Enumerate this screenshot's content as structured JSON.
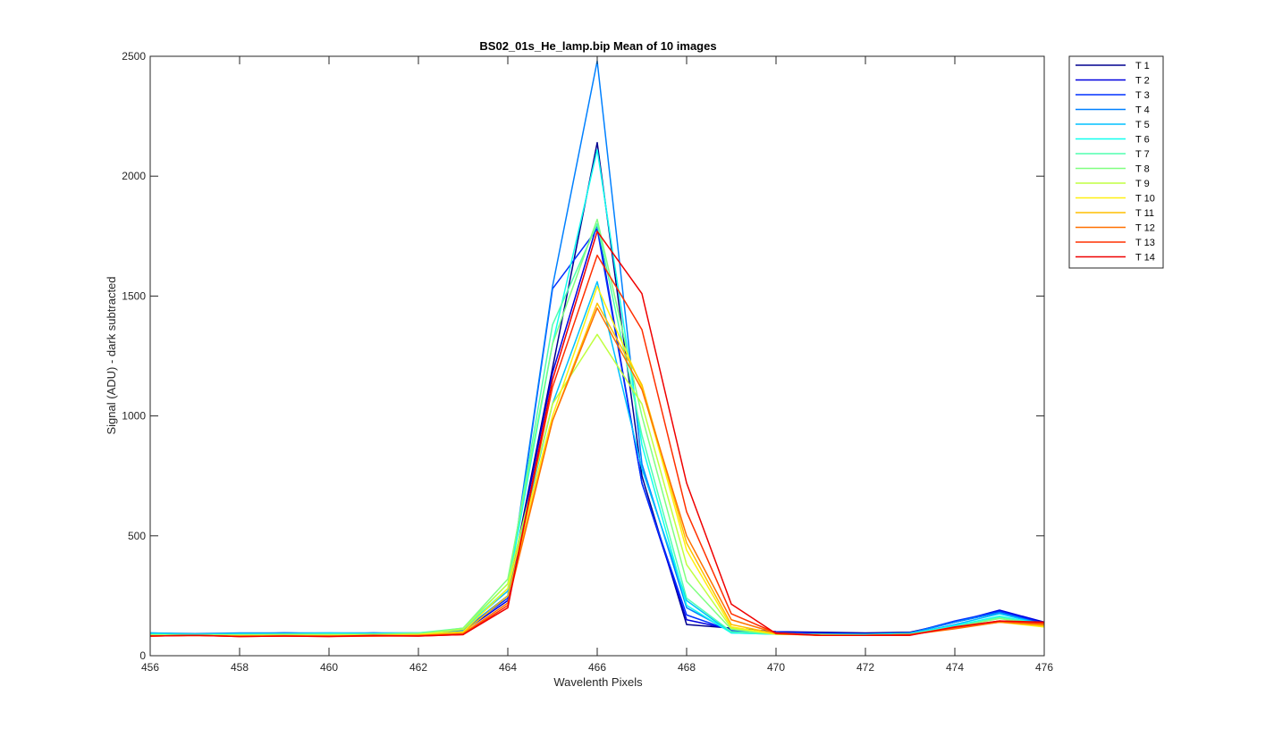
{
  "chart_data": {
    "type": "line",
    "title": "BS02_01s_He_lamp.bip  Mean of 10 images",
    "xlabel": "Wavelenth Pixels",
    "ylabel": "Signal (ADU) - dark subtracted",
    "xlim": [
      456,
      476
    ],
    "ylim": [
      0,
      2500
    ],
    "xticks": [
      456,
      458,
      460,
      462,
      464,
      466,
      468,
      470,
      472,
      474,
      476
    ],
    "yticks": [
      0,
      500,
      1000,
      1500,
      2000,
      2500
    ],
    "grid": false,
    "legend_position": "outside-top-right",
    "x": [
      456,
      457,
      458,
      459,
      460,
      461,
      462,
      463,
      464,
      465,
      466,
      467,
      468,
      469,
      470,
      471,
      472,
      473,
      474,
      475,
      476
    ],
    "series": [
      {
        "name": "T 1",
        "color": "#00008f",
        "values": [
          90,
          90,
          88,
          92,
          90,
          95,
          90,
          100,
          250,
          1200,
          2140,
          750,
          130,
          115,
          100,
          98,
          95,
          98,
          140,
          180,
          140
        ]
      },
      {
        "name": "T 2",
        "color": "#0000df",
        "values": [
          88,
          92,
          90,
          95,
          92,
          92,
          92,
          100,
          230,
          1180,
          1800,
          720,
          150,
          110,
          100,
          95,
          92,
          95,
          140,
          190,
          140
        ]
      },
      {
        "name": "T 3",
        "color": "#0030ff",
        "values": [
          92,
          90,
          92,
          95,
          92,
          92,
          92,
          105,
          240,
          1530,
          1780,
          720,
          170,
          105,
          95,
          92,
          90,
          95,
          145,
          185,
          135
        ]
      },
      {
        "name": "T 4",
        "color": "#0080ff",
        "values": [
          95,
          92,
          95,
          95,
          95,
          95,
          95,
          105,
          250,
          1540,
          2480,
          800,
          200,
          100,
          95,
          90,
          90,
          95,
          140,
          180,
          130
        ]
      },
      {
        "name": "T 5",
        "color": "#00c0ff",
        "values": [
          95,
          90,
          92,
          92,
          95,
          92,
          92,
          110,
          270,
          1050,
          1560,
          780,
          230,
          95,
          90,
          88,
          88,
          92,
          130,
          175,
          130
        ]
      },
      {
        "name": "T 6",
        "color": "#10ffef",
        "values": [
          90,
          88,
          90,
          90,
          92,
          92,
          95,
          110,
          280,
          1300,
          2110,
          880,
          210,
          95,
          90,
          88,
          88,
          92,
          125,
          165,
          130
        ]
      },
      {
        "name": "T 7",
        "color": "#50ffaf",
        "values": [
          88,
          88,
          88,
          90,
          90,
          90,
          95,
          115,
          300,
          1380,
          1800,
          920,
          240,
          100,
          90,
          88,
          88,
          90,
          120,
          160,
          130
        ]
      },
      {
        "name": "T 8",
        "color": "#80ff80",
        "values": [
          85,
          85,
          85,
          88,
          88,
          88,
          92,
          115,
          320,
          1300,
          1820,
          1000,
          310,
          110,
          90,
          88,
          85,
          88,
          120,
          155,
          125
        ]
      },
      {
        "name": "T 9",
        "color": "#c0ff40",
        "values": [
          85,
          85,
          85,
          85,
          85,
          88,
          88,
          110,
          300,
          1050,
          1340,
          1050,
          380,
          115,
          90,
          88,
          85,
          88,
          118,
          145,
          120
        ]
      },
      {
        "name": "T 10",
        "color": "#ffef10",
        "values": [
          85,
          85,
          85,
          85,
          85,
          85,
          88,
          100,
          280,
          1000,
          1540,
          1120,
          440,
          120,
          90,
          85,
          85,
          88,
          115,
          140,
          120
        ]
      },
      {
        "name": "T 11",
        "color": "#ffbf00",
        "values": [
          82,
          85,
          82,
          85,
          82,
          85,
          85,
          95,
          250,
          980,
          1470,
          1130,
          470,
          130,
          92,
          85,
          85,
          88,
          115,
          140,
          125
        ]
      },
      {
        "name": "T 12",
        "color": "#ff7000",
        "values": [
          82,
          85,
          80,
          82,
          82,
          82,
          85,
          92,
          220,
          980,
          1450,
          1110,
          500,
          150,
          95,
          85,
          85,
          88,
          112,
          140,
          130
        ]
      },
      {
        "name": "T 13",
        "color": "#ff3000",
        "values": [
          82,
          85,
          80,
          82,
          80,
          82,
          82,
          88,
          210,
          1120,
          1670,
          1360,
          600,
          175,
          95,
          85,
          85,
          88,
          118,
          145,
          135
        ]
      },
      {
        "name": "T 14",
        "color": "#ef0000",
        "values": [
          82,
          85,
          80,
          82,
          80,
          85,
          82,
          88,
          200,
          1150,
          1770,
          1510,
          720,
          215,
          92,
          85,
          85,
          85,
          120,
          145,
          140
        ]
      }
    ]
  }
}
